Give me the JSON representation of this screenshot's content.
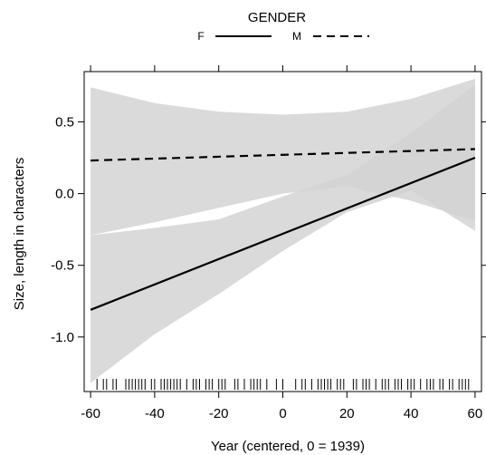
{
  "chart_data": {
    "type": "line",
    "legend": {
      "title": "GENDER",
      "placement": "top-center",
      "entries": [
        {
          "key": "F",
          "style": "solid"
        },
        {
          "key": "M",
          "style": "dashed"
        }
      ]
    },
    "xlabel": "Year (centered, 0 = 1939)",
    "ylabel": "Size, length in characters",
    "xlim": [
      -62,
      62
    ],
    "ylim": [
      -1.38,
      0.85
    ],
    "x_ticks": [
      -60,
      -40,
      -20,
      0,
      20,
      40,
      60
    ],
    "x_tick_labels": [
      "-60",
      "-40",
      "-20",
      "0",
      "20",
      "40",
      "60"
    ],
    "y_ticks": [
      -1.0,
      -0.5,
      0.0,
      0.5
    ],
    "y_tick_labels": [
      "-1.0",
      "-0.5",
      "0.0",
      "0.5"
    ],
    "grid": false,
    "series": [
      {
        "name": "F",
        "style": "solid",
        "x": [
          -60,
          60
        ],
        "y": [
          -0.81,
          0.25
        ],
        "band_x": [
          -60,
          -40,
          -20,
          0,
          20,
          40,
          60
        ],
        "band_lower": [
          -1.32,
          -0.98,
          -0.7,
          -0.4,
          -0.13,
          0.02,
          -0.26
        ],
        "band_upper": [
          -0.29,
          -0.24,
          -0.18,
          -0.02,
          0.13,
          0.42,
          0.76
        ]
      },
      {
        "name": "M",
        "style": "dashed",
        "x": [
          -60,
          60
        ],
        "y": [
          0.23,
          0.31
        ],
        "band_x": [
          -60,
          -40,
          -20,
          0,
          20,
          40,
          60
        ],
        "band_lower": [
          -0.29,
          -0.2,
          -0.1,
          0.0,
          0.05,
          -0.05,
          -0.19
        ],
        "band_upper": [
          0.74,
          0.63,
          0.57,
          0.55,
          0.57,
          0.66,
          0.8
        ]
      }
    ],
    "rug_x": [
      -58,
      -56,
      -55,
      -53,
      -52,
      -49,
      -48,
      -47,
      -46,
      -45,
      -44,
      -43,
      -41,
      -40,
      -38,
      -37,
      -36,
      -35,
      -34,
      -33,
      -32,
      -30,
      -28,
      -27,
      -26,
      -24,
      -23,
      -22,
      -20,
      -19,
      -18,
      -15,
      -14,
      -12,
      -10,
      -9,
      -8,
      -7,
      -5,
      -2,
      0,
      4,
      6,
      7,
      9,
      11,
      12,
      13,
      14,
      15,
      17,
      18,
      19,
      22,
      23,
      25,
      26,
      27,
      29,
      31,
      32,
      33,
      35,
      36,
      37,
      39,
      40,
      41,
      43,
      45,
      46,
      47,
      49,
      50,
      52,
      53,
      55,
      56,
      57,
      58
    ],
    "colors": {
      "band": "#d2d2d2",
      "band_opacity": 0.82,
      "line": "#000000",
      "axis": "#000000"
    }
  }
}
